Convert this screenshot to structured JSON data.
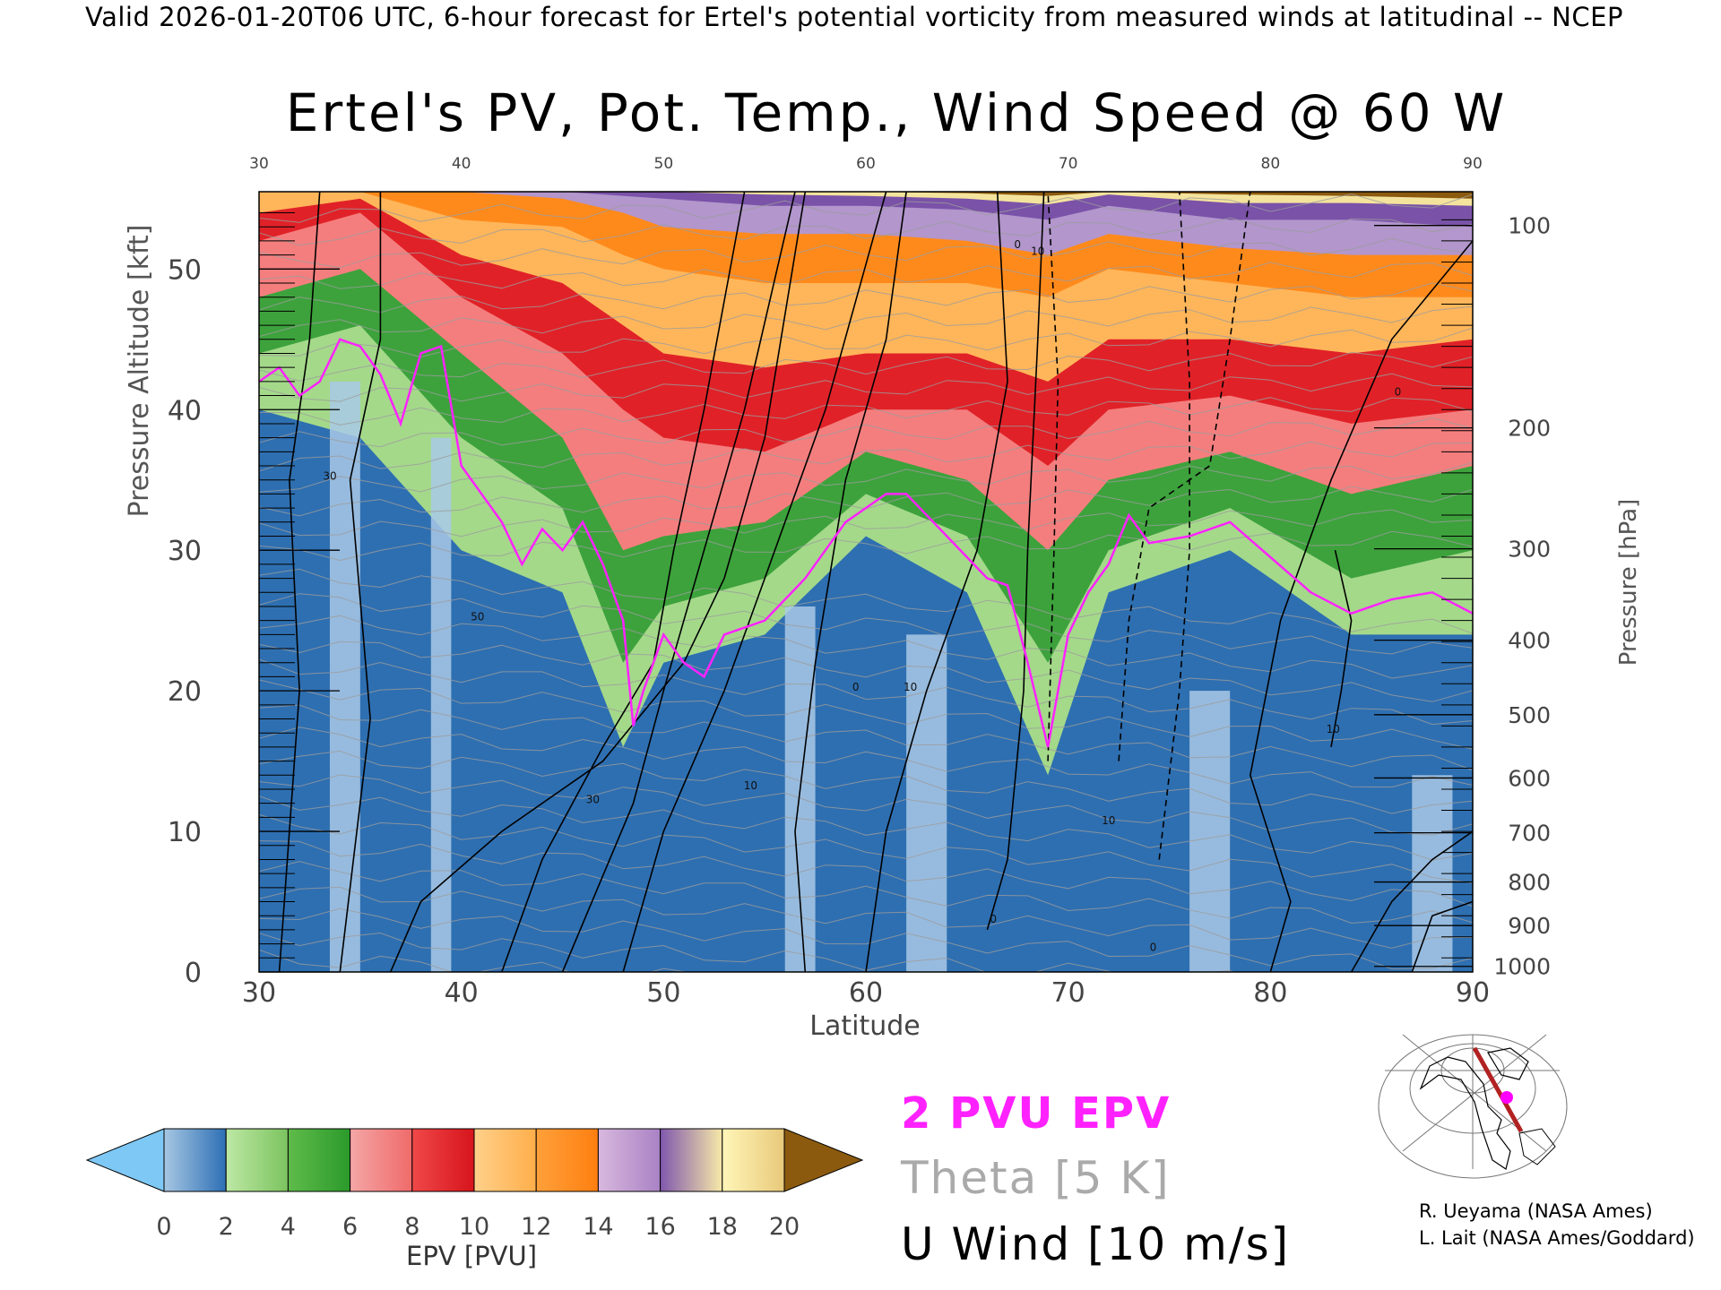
{
  "header": {
    "valid_line": "Valid 2026-01-20T06 UTC, 6-hour forecast for Ertel's potential vorticity from measured winds at latitudinal -- NCEP"
  },
  "chart_data": {
    "type": "heatmap",
    "title": "Ertel's PV, Pot. Temp., Wind Speed @ 60 W",
    "xlabel": "Latitude",
    "ylabel": "Pressure Altitude [kft]",
    "y2label": "Pressure [hPa]",
    "xlim": [
      30,
      90
    ],
    "ylim": [
      0,
      55.5
    ],
    "x_ticks": [
      "30",
      "40",
      "50",
      "60",
      "70",
      "80",
      "90"
    ],
    "x_top_ticks": [
      "30",
      "40",
      "50",
      "60",
      "70",
      "80",
      "90"
    ],
    "y_ticks": [
      "0",
      "10",
      "20",
      "30",
      "40",
      "50"
    ],
    "y2_ticks": [
      {
        "label": "1000",
        "kft": 0.4
      },
      {
        "label": "900",
        "kft": 3.3
      },
      {
        "label": "800",
        "kft": 6.4
      },
      {
        "label": "700",
        "kft": 9.9
      },
      {
        "label": "600",
        "kft": 13.8
      },
      {
        "label": "500",
        "kft": 18.3
      },
      {
        "label": "400",
        "kft": 23.6
      },
      {
        "label": "300",
        "kft": 30.1
      },
      {
        "label": "200",
        "kft": 38.7
      },
      {
        "label": "100",
        "kft": 53.1
      }
    ],
    "colorbar": {
      "label": "EPV [PVU]",
      "tick_labels": [
        "0",
        "2",
        "4",
        "6",
        "8",
        "10",
        "12",
        "14",
        "16",
        "18",
        "20"
      ],
      "under_color": "#7ec8f5",
      "over_color": "#8b5a0f",
      "bins": [
        {
          "from": 0,
          "to": 2,
          "colors": [
            "#a7c7e3",
            "#2d6fb4"
          ]
        },
        {
          "from": 2,
          "to": 4,
          "colors": [
            "#bde8a4",
            "#7cc35f"
          ]
        },
        {
          "from": 4,
          "to": 6,
          "colors": [
            "#5fbb4a",
            "#2b9a2b"
          ]
        },
        {
          "from": 6,
          "to": 8,
          "colors": [
            "#f4a6a6",
            "#f06a6a"
          ]
        },
        {
          "from": 8,
          "to": 10,
          "colors": [
            "#f04848",
            "#d6141c"
          ]
        },
        {
          "from": 10,
          "to": 12,
          "colors": [
            "#ffd08a",
            "#ffae4a"
          ]
        },
        {
          "from": 12,
          "to": 14,
          "colors": [
            "#ffa03a",
            "#ff7f10"
          ]
        },
        {
          "from": 14,
          "to": 16,
          "colors": [
            "#d8b8de",
            "#a982c4"
          ]
        },
        {
          "from": 16,
          "to": 18,
          "colors": [
            "#8058ad",
            "#f7e9a8"
          ]
        },
        {
          "from": 18,
          "to": 20,
          "colors": [
            "#fff6b8",
            "#e8c97a"
          ]
        }
      ]
    },
    "tropopause_2pvu_kft": [
      [
        30,
        42
      ],
      [
        31,
        43
      ],
      [
        32,
        41
      ],
      [
        33,
        42
      ],
      [
        34,
        45
      ],
      [
        35,
        44.5
      ],
      [
        36,
        42.5
      ],
      [
        37,
        39
      ],
      [
        38,
        44
      ],
      [
        39,
        44.5
      ],
      [
        40,
        36
      ],
      [
        41,
        34
      ],
      [
        42,
        32
      ],
      [
        43,
        29
      ],
      [
        44,
        31.5
      ],
      [
        45,
        30
      ],
      [
        46,
        32
      ],
      [
        47,
        29
      ],
      [
        48,
        25
      ],
      [
        48.5,
        17.5
      ],
      [
        49,
        20
      ],
      [
        50,
        24
      ],
      [
        51,
        22
      ],
      [
        52,
        21
      ],
      [
        53,
        24
      ],
      [
        55,
        25
      ],
      [
        57,
        28
      ],
      [
        59,
        32
      ],
      [
        61,
        34
      ],
      [
        62,
        34
      ],
      [
        64,
        31
      ],
      [
        66,
        28
      ],
      [
        67,
        27.5
      ],
      [
        68,
        22
      ],
      [
        69,
        16
      ],
      [
        70,
        24
      ],
      [
        71,
        27
      ],
      [
        72,
        29
      ],
      [
        73,
        32.5
      ],
      [
        74,
        30.5
      ],
      [
        76,
        31
      ],
      [
        78,
        32
      ],
      [
        80,
        29.5
      ],
      [
        82,
        27
      ],
      [
        84,
        25.5
      ],
      [
        86,
        26.5
      ],
      [
        88,
        27
      ],
      [
        90,
        25.5
      ]
    ],
    "zones": [
      {
        "name": "1-2 PVU",
        "color": "#2e6fb1",
        "top_kft": [
          [
            30,
            40
          ],
          [
            35,
            38
          ],
          [
            40,
            30
          ],
          [
            45,
            27
          ],
          [
            48,
            16
          ],
          [
            50,
            22
          ],
          [
            55,
            24
          ],
          [
            60,
            31
          ],
          [
            65,
            27
          ],
          [
            69,
            14
          ],
          [
            72,
            27
          ],
          [
            78,
            30
          ],
          [
            84,
            24
          ],
          [
            90,
            24
          ]
        ]
      },
      {
        "name": "2-4 PVU",
        "color": "#a4d98a",
        "top_kft": [
          [
            30,
            44
          ],
          [
            35,
            46
          ],
          [
            40,
            38
          ],
          [
            45,
            33
          ],
          [
            48,
            22
          ],
          [
            50,
            26
          ],
          [
            55,
            28
          ],
          [
            60,
            34
          ],
          [
            65,
            31
          ],
          [
            69,
            22
          ],
          [
            72,
            30
          ],
          [
            78,
            33
          ],
          [
            84,
            28
          ],
          [
            90,
            30
          ]
        ]
      },
      {
        "name": "4-6 PVU",
        "color": "#3da23c",
        "top_kft": [
          [
            30,
            48
          ],
          [
            35,
            50
          ],
          [
            40,
            44
          ],
          [
            45,
            38
          ],
          [
            48,
            30
          ],
          [
            50,
            31
          ],
          [
            55,
            32
          ],
          [
            60,
            37
          ],
          [
            65,
            35
          ],
          [
            69,
            30
          ],
          [
            72,
            35
          ],
          [
            78,
            37
          ],
          [
            84,
            34
          ],
          [
            90,
            36
          ]
        ]
      },
      {
        "name": "6-8 PVU",
        "color": "#f47e7e",
        "top_kft": [
          [
            30,
            52
          ],
          [
            35,
            54
          ],
          [
            40,
            48
          ],
          [
            45,
            44
          ],
          [
            48,
            40
          ],
          [
            50,
            38
          ],
          [
            55,
            37
          ],
          [
            60,
            40
          ],
          [
            65,
            40
          ],
          [
            69,
            36
          ],
          [
            72,
            40
          ],
          [
            78,
            41
          ],
          [
            84,
            39
          ],
          [
            90,
            40
          ]
        ]
      },
      {
        "name": "8-10 PVU",
        "color": "#e02228",
        "top_kft": [
          [
            30,
            54
          ],
          [
            35,
            55
          ],
          [
            40,
            51
          ],
          [
            45,
            49
          ],
          [
            48,
            46
          ],
          [
            50,
            44
          ],
          [
            55,
            43
          ],
          [
            60,
            44
          ],
          [
            65,
            44
          ],
          [
            69,
            42
          ],
          [
            72,
            45
          ],
          [
            78,
            45
          ],
          [
            84,
            44
          ],
          [
            90,
            45
          ]
        ]
      },
      {
        "name": "10-12 PVU",
        "color": "#ffb65a",
        "top_kft": [
          [
            30,
            55.5
          ],
          [
            35,
            55.5
          ],
          [
            40,
            53.5
          ],
          [
            45,
            53
          ],
          [
            48,
            51
          ],
          [
            50,
            50
          ],
          [
            55,
            49
          ],
          [
            60,
            49
          ],
          [
            65,
            49
          ],
          [
            69,
            48
          ],
          [
            72,
            50
          ],
          [
            78,
            49
          ],
          [
            84,
            48
          ],
          [
            90,
            48
          ]
        ]
      },
      {
        "name": "12-14 PVU",
        "color": "#ff8a1c",
        "top_kft": [
          [
            30,
            55.5
          ],
          [
            40,
            55.5
          ],
          [
            45,
            55
          ],
          [
            48,
            54
          ],
          [
            50,
            53
          ],
          [
            55,
            52.5
          ],
          [
            60,
            52.5
          ],
          [
            65,
            52
          ],
          [
            69,
            51
          ],
          [
            72,
            52.5
          ],
          [
            78,
            51.5
          ],
          [
            84,
            51
          ],
          [
            90,
            51
          ]
        ]
      },
      {
        "name": "14-16 PVU",
        "color": "#b296cc",
        "top_kft": [
          [
            30,
            55.5
          ],
          [
            45,
            55.5
          ],
          [
            50,
            55
          ],
          [
            55,
            54.5
          ],
          [
            60,
            54.5
          ],
          [
            65,
            54.2
          ],
          [
            69,
            53.5
          ],
          [
            72,
            54.5
          ],
          [
            78,
            53.5
          ],
          [
            84,
            53.5
          ],
          [
            90,
            53
          ]
        ]
      },
      {
        "name": "16-18 PVU",
        "color": "#7a52a8",
        "top_kft": [
          [
            30,
            55.5
          ],
          [
            50,
            55.5
          ],
          [
            55,
            55.3
          ],
          [
            60,
            55.2
          ],
          [
            65,
            55
          ],
          [
            69,
            54.6
          ],
          [
            72,
            55.3
          ],
          [
            78,
            54.7
          ],
          [
            84,
            54.7
          ],
          [
            90,
            54.5
          ]
        ]
      },
      {
        "name": "18-20 PVU",
        "color": "#f4e39c",
        "top_kft": [
          [
            30,
            55.5
          ],
          [
            60,
            55.5
          ],
          [
            65,
            55.4
          ],
          [
            69,
            55.2
          ],
          [
            72,
            55.5
          ],
          [
            78,
            55.3
          ],
          [
            84,
            55.2
          ],
          [
            90,
            55
          ]
        ]
      }
    ],
    "annotations": [
      {
        "text": "30",
        "lat": 33.5,
        "kft": 35
      },
      {
        "text": "30",
        "lat": 46.5,
        "kft": 12
      },
      {
        "text": "50",
        "lat": 40.8,
        "kft": 25
      },
      {
        "text": "10",
        "lat": 62.2,
        "kft": 20
      },
      {
        "text": "10",
        "lat": 83.1,
        "kft": 17
      },
      {
        "text": "10",
        "lat": 54.3,
        "kft": 13
      },
      {
        "text": "10",
        "lat": 72,
        "kft": 10.5
      },
      {
        "text": "10",
        "lat": 68.5,
        "kft": 51
      },
      {
        "text": "0",
        "lat": 67.5,
        "kft": 51.5
      },
      {
        "text": "0",
        "lat": 86.3,
        "kft": 41
      },
      {
        "text": "0",
        "lat": 59.5,
        "kft": 20
      },
      {
        "text": "0",
        "lat": 74.2,
        "kft": 1.5
      },
      {
        "text": "0",
        "lat": 66.3,
        "kft": 3.5
      }
    ]
  },
  "legend": {
    "pv_label": "2 PVU EPV",
    "pv_color": "#ff22ff",
    "theta_label": "Theta [5 K]",
    "theta_color": "#aaaaaa",
    "u_label": "U Wind [10 m/s]"
  },
  "credits": {
    "line1": "R. Ueyama (NASA Ames)",
    "line2": "L. Lait (NASA Ames/Goddard)"
  },
  "inset_map": {
    "section_line_color": "#b22222",
    "marker_color": "#ff00ff"
  }
}
